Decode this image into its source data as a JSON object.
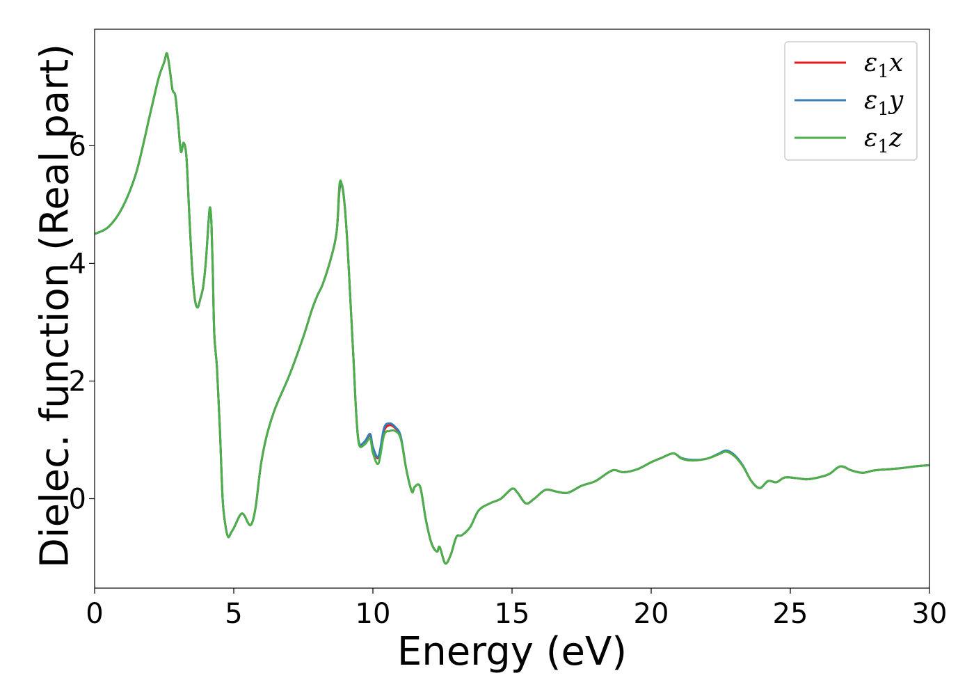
{
  "chart_data": {
    "type": "line",
    "title": "",
    "xlabel": "Energy (eV)",
    "ylabel": "Dielec. function (Real part)",
    "xlim": [
      0,
      30
    ],
    "ylim": [
      -1.52,
      7.98
    ],
    "xticks": [
      0,
      5,
      10,
      15,
      20,
      25,
      30
    ],
    "yticks": [
      0,
      2,
      4,
      6
    ],
    "grid": false,
    "legend_position": "top-right",
    "series": [
      {
        "name": "ε1x",
        "legend_main": "ε",
        "legend_sub": "1",
        "legend_suffix": "x",
        "color": "#e41a1c",
        "x": [
          0,
          0.5,
          1.0,
          1.5,
          2.0,
          2.3,
          2.5,
          2.6,
          2.7,
          2.8,
          2.9,
          3.0,
          3.1,
          3.2,
          3.3,
          3.4,
          3.5,
          3.6,
          3.7,
          3.8,
          3.9,
          4.0,
          4.1,
          4.15,
          4.2,
          4.25,
          4.3,
          4.4,
          4.5,
          4.6,
          4.7,
          4.8,
          4.9,
          5.0,
          5.1,
          5.2,
          5.3,
          5.4,
          5.5,
          5.6,
          5.7,
          5.8,
          5.9,
          6.0,
          6.2,
          6.5,
          7.0,
          7.5,
          7.8,
          8.0,
          8.2,
          8.5,
          8.7,
          8.8,
          8.9,
          9.0,
          9.1,
          9.2,
          9.3,
          9.4,
          9.5,
          9.7,
          9.9,
          10.0,
          10.2,
          10.4,
          10.6,
          10.8,
          11.0,
          11.2,
          11.4,
          11.5,
          11.7,
          11.9,
          12.1,
          12.3,
          12.4,
          12.6,
          12.8,
          13.0,
          13.2,
          13.5,
          13.8,
          14.2,
          14.6,
          15.0,
          15.2,
          15.5,
          15.8,
          16.2,
          16.6,
          17.0,
          17.5,
          18.0,
          18.6,
          19.0,
          19.5,
          20.0,
          20.4,
          20.8,
          21.1,
          21.5,
          22.0,
          22.4,
          22.7,
          23.0,
          23.3,
          23.6,
          23.9,
          24.2,
          24.5,
          24.8,
          25.2,
          25.6,
          26.0,
          26.4,
          26.8,
          27.2,
          27.6,
          28.0,
          28.5,
          29.0,
          29.5,
          30.0
        ],
        "y": [
          4.5,
          4.62,
          4.95,
          5.55,
          6.55,
          7.15,
          7.42,
          7.57,
          7.3,
          6.95,
          6.85,
          6.4,
          5.9,
          6.05,
          5.8,
          4.85,
          3.95,
          3.4,
          3.25,
          3.4,
          3.6,
          4.05,
          4.75,
          4.95,
          4.65,
          3.8,
          2.8,
          2.2,
          1.2,
          0.0,
          -0.45,
          -0.65,
          -0.58,
          -0.5,
          -0.4,
          -0.3,
          -0.25,
          -0.3,
          -0.4,
          -0.45,
          -0.35,
          -0.1,
          0.3,
          0.65,
          1.1,
          1.55,
          2.1,
          2.75,
          3.2,
          3.45,
          3.65,
          4.1,
          4.55,
          5.25,
          5.3,
          4.9,
          4.2,
          3.3,
          2.4,
          1.45,
          0.95,
          0.95,
          1.08,
          0.85,
          0.7,
          1.15,
          1.25,
          1.2,
          1.05,
          0.5,
          0.12,
          0.2,
          0.2,
          -0.35,
          -0.75,
          -0.9,
          -0.82,
          -1.1,
          -0.95,
          -0.65,
          -0.62,
          -0.48,
          -0.2,
          -0.08,
          0.0,
          0.17,
          0.1,
          -0.08,
          0.0,
          0.15,
          0.12,
          0.1,
          0.22,
          0.3,
          0.48,
          0.45,
          0.5,
          0.62,
          0.7,
          0.77,
          0.68,
          0.65,
          0.68,
          0.75,
          0.8,
          0.72,
          0.55,
          0.3,
          0.18,
          0.3,
          0.28,
          0.36,
          0.35,
          0.33,
          0.36,
          0.42,
          0.55,
          0.48,
          0.44,
          0.48,
          0.5,
          0.52,
          0.55,
          0.57
        ]
      },
      {
        "name": "ε1y",
        "legend_main": "ε",
        "legend_sub": "1",
        "legend_suffix": "y",
        "color": "#377eb8",
        "x": [
          0,
          0.5,
          1.0,
          1.5,
          2.0,
          2.3,
          2.5,
          2.6,
          2.7,
          2.8,
          2.9,
          3.0,
          3.1,
          3.2,
          3.3,
          3.4,
          3.5,
          3.6,
          3.7,
          3.8,
          3.9,
          4.0,
          4.1,
          4.15,
          4.2,
          4.25,
          4.3,
          4.4,
          4.5,
          4.6,
          4.7,
          4.8,
          4.9,
          5.0,
          5.1,
          5.2,
          5.3,
          5.4,
          5.5,
          5.6,
          5.7,
          5.8,
          5.9,
          6.0,
          6.2,
          6.5,
          7.0,
          7.5,
          7.8,
          8.0,
          8.2,
          8.5,
          8.7,
          8.8,
          8.9,
          9.0,
          9.1,
          9.2,
          9.3,
          9.4,
          9.5,
          9.7,
          9.9,
          10.0,
          10.2,
          10.4,
          10.6,
          10.8,
          11.0,
          11.2,
          11.4,
          11.5,
          11.7,
          11.9,
          12.1,
          12.3,
          12.4,
          12.6,
          12.8,
          13.0,
          13.2,
          13.5,
          13.8,
          14.2,
          14.6,
          15.0,
          15.2,
          15.5,
          15.8,
          16.2,
          16.6,
          17.0,
          17.5,
          18.0,
          18.6,
          19.0,
          19.5,
          20.0,
          20.4,
          20.8,
          21.1,
          21.5,
          22.0,
          22.4,
          22.7,
          23.0,
          23.3,
          23.6,
          23.9,
          24.2,
          24.5,
          24.8,
          25.2,
          25.6,
          26.0,
          26.4,
          26.8,
          27.2,
          27.6,
          28.0,
          28.5,
          29.0,
          29.5,
          30.0
        ],
        "y": [
          4.5,
          4.62,
          4.95,
          5.55,
          6.55,
          7.15,
          7.42,
          7.57,
          7.3,
          6.95,
          6.85,
          6.4,
          5.9,
          6.05,
          5.8,
          4.85,
          3.95,
          3.4,
          3.25,
          3.4,
          3.6,
          4.05,
          4.75,
          4.95,
          4.65,
          3.8,
          2.8,
          2.2,
          1.2,
          0.0,
          -0.45,
          -0.65,
          -0.58,
          -0.5,
          -0.4,
          -0.3,
          -0.25,
          -0.3,
          -0.4,
          -0.45,
          -0.35,
          -0.1,
          0.3,
          0.65,
          1.1,
          1.55,
          2.1,
          2.75,
          3.2,
          3.45,
          3.65,
          4.1,
          4.55,
          5.28,
          5.32,
          4.92,
          4.2,
          3.3,
          2.4,
          1.45,
          0.95,
          0.97,
          1.1,
          0.88,
          0.72,
          1.2,
          1.28,
          1.22,
          1.06,
          0.5,
          0.12,
          0.2,
          0.2,
          -0.35,
          -0.75,
          -0.9,
          -0.82,
          -1.1,
          -0.95,
          -0.65,
          -0.62,
          -0.48,
          -0.2,
          -0.08,
          0.0,
          0.17,
          0.1,
          -0.08,
          0.0,
          0.15,
          0.12,
          0.1,
          0.22,
          0.3,
          0.48,
          0.45,
          0.5,
          0.62,
          0.7,
          0.77,
          0.69,
          0.66,
          0.68,
          0.76,
          0.82,
          0.74,
          0.56,
          0.3,
          0.18,
          0.3,
          0.28,
          0.36,
          0.35,
          0.33,
          0.36,
          0.42,
          0.55,
          0.48,
          0.44,
          0.48,
          0.5,
          0.52,
          0.55,
          0.57
        ]
      },
      {
        "name": "ε1z",
        "legend_main": "ε",
        "legend_sub": "1",
        "legend_suffix": "z",
        "color": "#4daf4a",
        "x": [
          0,
          0.5,
          1.0,
          1.5,
          2.0,
          2.3,
          2.5,
          2.6,
          2.7,
          2.8,
          2.9,
          3.0,
          3.1,
          3.2,
          3.3,
          3.4,
          3.5,
          3.6,
          3.7,
          3.8,
          3.9,
          4.0,
          4.1,
          4.15,
          4.2,
          4.25,
          4.3,
          4.4,
          4.5,
          4.6,
          4.7,
          4.8,
          4.9,
          5.0,
          5.1,
          5.2,
          5.3,
          5.4,
          5.5,
          5.6,
          5.7,
          5.8,
          5.9,
          6.0,
          6.2,
          6.5,
          7.0,
          7.5,
          7.8,
          8.0,
          8.2,
          8.5,
          8.7,
          8.8,
          8.9,
          9.0,
          9.1,
          9.2,
          9.3,
          9.4,
          9.5,
          9.7,
          9.9,
          10.0,
          10.2,
          10.4,
          10.6,
          10.8,
          11.0,
          11.2,
          11.4,
          11.5,
          11.7,
          11.9,
          12.1,
          12.3,
          12.4,
          12.6,
          12.8,
          13.0,
          13.2,
          13.5,
          13.8,
          14.2,
          14.6,
          15.0,
          15.2,
          15.5,
          15.8,
          16.2,
          16.6,
          17.0,
          17.5,
          18.0,
          18.6,
          19.0,
          19.5,
          20.0,
          20.4,
          20.8,
          21.1,
          21.5,
          22.0,
          22.4,
          22.7,
          23.0,
          23.3,
          23.6,
          23.9,
          24.2,
          24.5,
          24.8,
          25.2,
          25.6,
          26.0,
          26.4,
          26.8,
          27.2,
          27.6,
          28.0,
          28.5,
          29.0,
          29.5,
          30.0
        ],
        "y": [
          4.5,
          4.62,
          4.95,
          5.55,
          6.55,
          7.15,
          7.42,
          7.57,
          7.3,
          6.95,
          6.85,
          6.4,
          5.9,
          6.05,
          5.8,
          4.85,
          3.95,
          3.4,
          3.25,
          3.4,
          3.6,
          4.05,
          4.75,
          4.95,
          4.65,
          3.8,
          2.8,
          2.2,
          1.2,
          0.0,
          -0.45,
          -0.65,
          -0.58,
          -0.5,
          -0.4,
          -0.3,
          -0.25,
          -0.3,
          -0.4,
          -0.45,
          -0.35,
          -0.1,
          0.3,
          0.65,
          1.1,
          1.55,
          2.1,
          2.75,
          3.2,
          3.45,
          3.65,
          4.1,
          4.55,
          5.35,
          5.3,
          4.9,
          4.2,
          3.3,
          2.4,
          1.45,
          0.92,
          0.92,
          1.02,
          0.78,
          0.6,
          1.08,
          1.15,
          1.15,
          1.02,
          0.5,
          0.12,
          0.2,
          0.2,
          -0.35,
          -0.75,
          -0.9,
          -0.82,
          -1.1,
          -0.95,
          -0.65,
          -0.62,
          -0.48,
          -0.2,
          -0.08,
          0.0,
          0.17,
          0.1,
          -0.08,
          0.0,
          0.15,
          0.12,
          0.1,
          0.22,
          0.3,
          0.48,
          0.45,
          0.5,
          0.62,
          0.7,
          0.77,
          0.68,
          0.65,
          0.68,
          0.75,
          0.8,
          0.72,
          0.55,
          0.3,
          0.18,
          0.3,
          0.28,
          0.36,
          0.35,
          0.33,
          0.36,
          0.42,
          0.55,
          0.48,
          0.44,
          0.48,
          0.5,
          0.52,
          0.55,
          0.57
        ]
      }
    ]
  }
}
